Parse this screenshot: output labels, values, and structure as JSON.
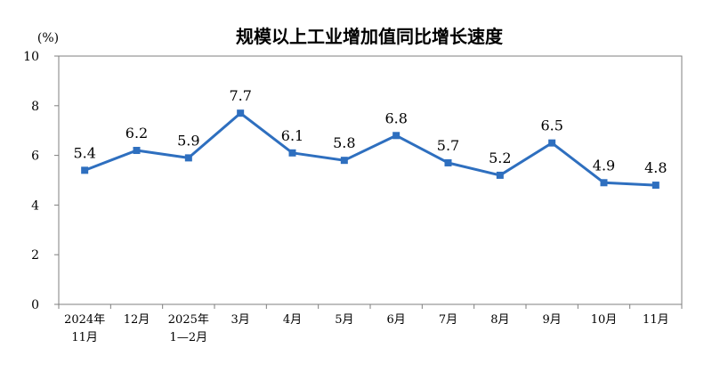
{
  "chart_data": {
    "type": "line",
    "title": "规模以上工业增加值同比增长速度",
    "ylabel": "(%)",
    "xlabel": "",
    "ylim": [
      0,
      10
    ],
    "yticks": [
      0,
      2,
      4,
      6,
      8,
      10
    ],
    "categories": [
      [
        "2024年",
        "11月"
      ],
      [
        "12月"
      ],
      [
        "2025年",
        "1—2月"
      ],
      [
        "3月"
      ],
      [
        "4月"
      ],
      [
        "5月"
      ],
      [
        "6月"
      ],
      [
        "7月"
      ],
      [
        "8月"
      ],
      [
        "9月"
      ],
      [
        "10月"
      ],
      [
        "11月"
      ]
    ],
    "values": [
      5.4,
      6.2,
      5.9,
      7.7,
      6.1,
      5.8,
      6.8,
      5.7,
      5.2,
      6.5,
      4.9,
      4.8
    ],
    "labels": [
      "5.4",
      "6.2",
      "5.9",
      "7.7",
      "6.1",
      "5.8",
      "6.8",
      "5.7",
      "5.2",
      "6.5",
      "4.9",
      "4.8"
    ],
    "line_color": "#2e6fbf",
    "grid": false,
    "legend": "none"
  }
}
